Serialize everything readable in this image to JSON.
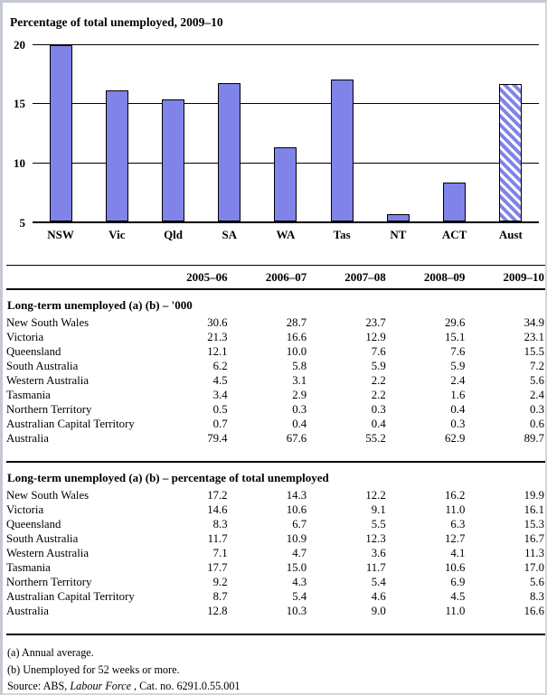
{
  "chart_data": {
    "type": "bar",
    "title": "Percentage of total unemployed, 2009–10",
    "categories": [
      "NSW",
      "Vic",
      "Qld",
      "SA",
      "WA",
      "Tas",
      "NT",
      "ACT",
      "Aust"
    ],
    "values": [
      19.9,
      16.1,
      15.3,
      16.7,
      11.3,
      17.0,
      5.6,
      8.3,
      16.6
    ],
    "ylim": [
      5,
      20
    ],
    "yticks": [
      5,
      10,
      15,
      20
    ],
    "grid": true,
    "legend": "none",
    "bar_color": "#8083e8",
    "bar_border_color": "#000000",
    "hatched_category": "Aust"
  },
  "table": {
    "column_headers": [
      "2005–06",
      "2006–07",
      "2007–08",
      "2008–09",
      "2009–10"
    ],
    "sections": [
      {
        "title": "Long-term unemployed (a) (b) – '000",
        "rows": [
          {
            "label": "New South Wales",
            "values": [
              "30.6",
              "28.7",
              "23.7",
              "29.6",
              "34.9"
            ]
          },
          {
            "label": "Victoria",
            "values": [
              "21.3",
              "16.6",
              "12.9",
              "15.1",
              "23.1"
            ]
          },
          {
            "label": "Queensland",
            "values": [
              "12.1",
              "10.0",
              "7.6",
              "7.6",
              "15.5"
            ]
          },
          {
            "label": "South Australia",
            "values": [
              "6.2",
              "5.8",
              "5.9",
              "5.9",
              "7.2"
            ]
          },
          {
            "label": "Western Australia",
            "values": [
              "4.5",
              "3.1",
              "2.2",
              "2.4",
              "5.6"
            ]
          },
          {
            "label": "Tasmania",
            "values": [
              "3.4",
              "2.9",
              "2.2",
              "1.6",
              "2.4"
            ]
          },
          {
            "label": "Northern Territory",
            "values": [
              "0.5",
              "0.3",
              "0.3",
              "0.4",
              "0.3"
            ]
          },
          {
            "label": "Australian Capital Territory",
            "values": [
              "0.7",
              "0.4",
              "0.4",
              "0.3",
              "0.6"
            ]
          },
          {
            "label": "Australia",
            "values": [
              "79.4",
              "67.6",
              "55.2",
              "62.9",
              "89.7"
            ]
          }
        ]
      },
      {
        "title": "Long-term unemployed (a) (b) – percentage of total unemployed",
        "rows": [
          {
            "label": "New South Wales",
            "values": [
              "17.2",
              "14.3",
              "12.2",
              "16.2",
              "19.9"
            ]
          },
          {
            "label": "Victoria",
            "values": [
              "14.6",
              "10.6",
              "9.1",
              "11.0",
              "16.1"
            ]
          },
          {
            "label": "Queensland",
            "values": [
              "8.3",
              "6.7",
              "5.5",
              "6.3",
              "15.3"
            ]
          },
          {
            "label": "South Australia",
            "values": [
              "11.7",
              "10.9",
              "12.3",
              "12.7",
              "16.7"
            ]
          },
          {
            "label": "Western Australia",
            "values": [
              "7.1",
              "4.7",
              "3.6",
              "4.1",
              "11.3"
            ]
          },
          {
            "label": "Tasmania",
            "values": [
              "17.7",
              "15.0",
              "11.7",
              "10.6",
              "17.0"
            ]
          },
          {
            "label": "Northern Territory",
            "values": [
              "9.2",
              "4.3",
              "5.4",
              "6.9",
              "5.6"
            ]
          },
          {
            "label": "Australian Capital Territory",
            "values": [
              "8.7",
              "5.4",
              "4.6",
              "4.5",
              "8.3"
            ]
          },
          {
            "label": "Australia",
            "values": [
              "12.8",
              "10.3",
              "9.0",
              "11.0",
              "16.6"
            ]
          }
        ]
      }
    ]
  },
  "footnotes": {
    "note_a": "(a) Annual average.",
    "note_b": "(b) Unemployed for 52 weeks or more.",
    "source_prefix": "Source: ABS, ",
    "source_italic": "Labour Force",
    "source_suffix": " , Cat. no. 6291.0.55.001"
  }
}
